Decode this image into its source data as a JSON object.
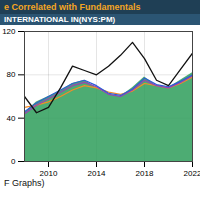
{
  "chart_data": {
    "type": "line",
    "title": "e Correlated with Fundamentals",
    "subtitle": "INTERNATIONAL IN(NYS:PM)",
    "caption": "F Graphs)",
    "x": [
      2008,
      2009,
      2010,
      2011,
      2012,
      2013,
      2014,
      2015,
      2016,
      2017,
      2018,
      2019,
      2020,
      2021,
      2022
    ],
    "xlim": [
      2008,
      2022
    ],
    "xticks": [
      2010,
      2014,
      2018,
      2022
    ],
    "ylim": [
      0,
      120
    ],
    "yticks": [
      0,
      40,
      80,
      120
    ],
    "grid": true,
    "series": [
      {
        "type": "area",
        "color": "#2e9e5b",
        "values": [
          45,
          55,
          60,
          65,
          72,
          75,
          68,
          62,
          60,
          68,
          78,
          70,
          68,
          75,
          82
        ]
      },
      {
        "type": "line",
        "color": "#f28c28",
        "values": [
          50,
          52,
          55,
          60,
          66,
          70,
          68,
          64,
          62,
          65,
          72,
          70,
          68,
          72,
          78
        ]
      },
      {
        "type": "line",
        "color": "#9b3fb5",
        "values": [
          44,
          52,
          58,
          64,
          70,
          73,
          69,
          62,
          60,
          66,
          75,
          70,
          68,
          73,
          79
        ]
      },
      {
        "type": "line",
        "color": "#2d5bd7",
        "values": [
          46,
          54,
          60,
          66,
          72,
          75,
          70,
          63,
          61,
          67,
          77,
          71,
          69,
          74,
          80
        ]
      },
      {
        "type": "line",
        "color": "#111111",
        "values": [
          60,
          45,
          50,
          68,
          88,
          84,
          80,
          88,
          98,
          110,
          95,
          75,
          70,
          85,
          100
        ]
      }
    ]
  }
}
